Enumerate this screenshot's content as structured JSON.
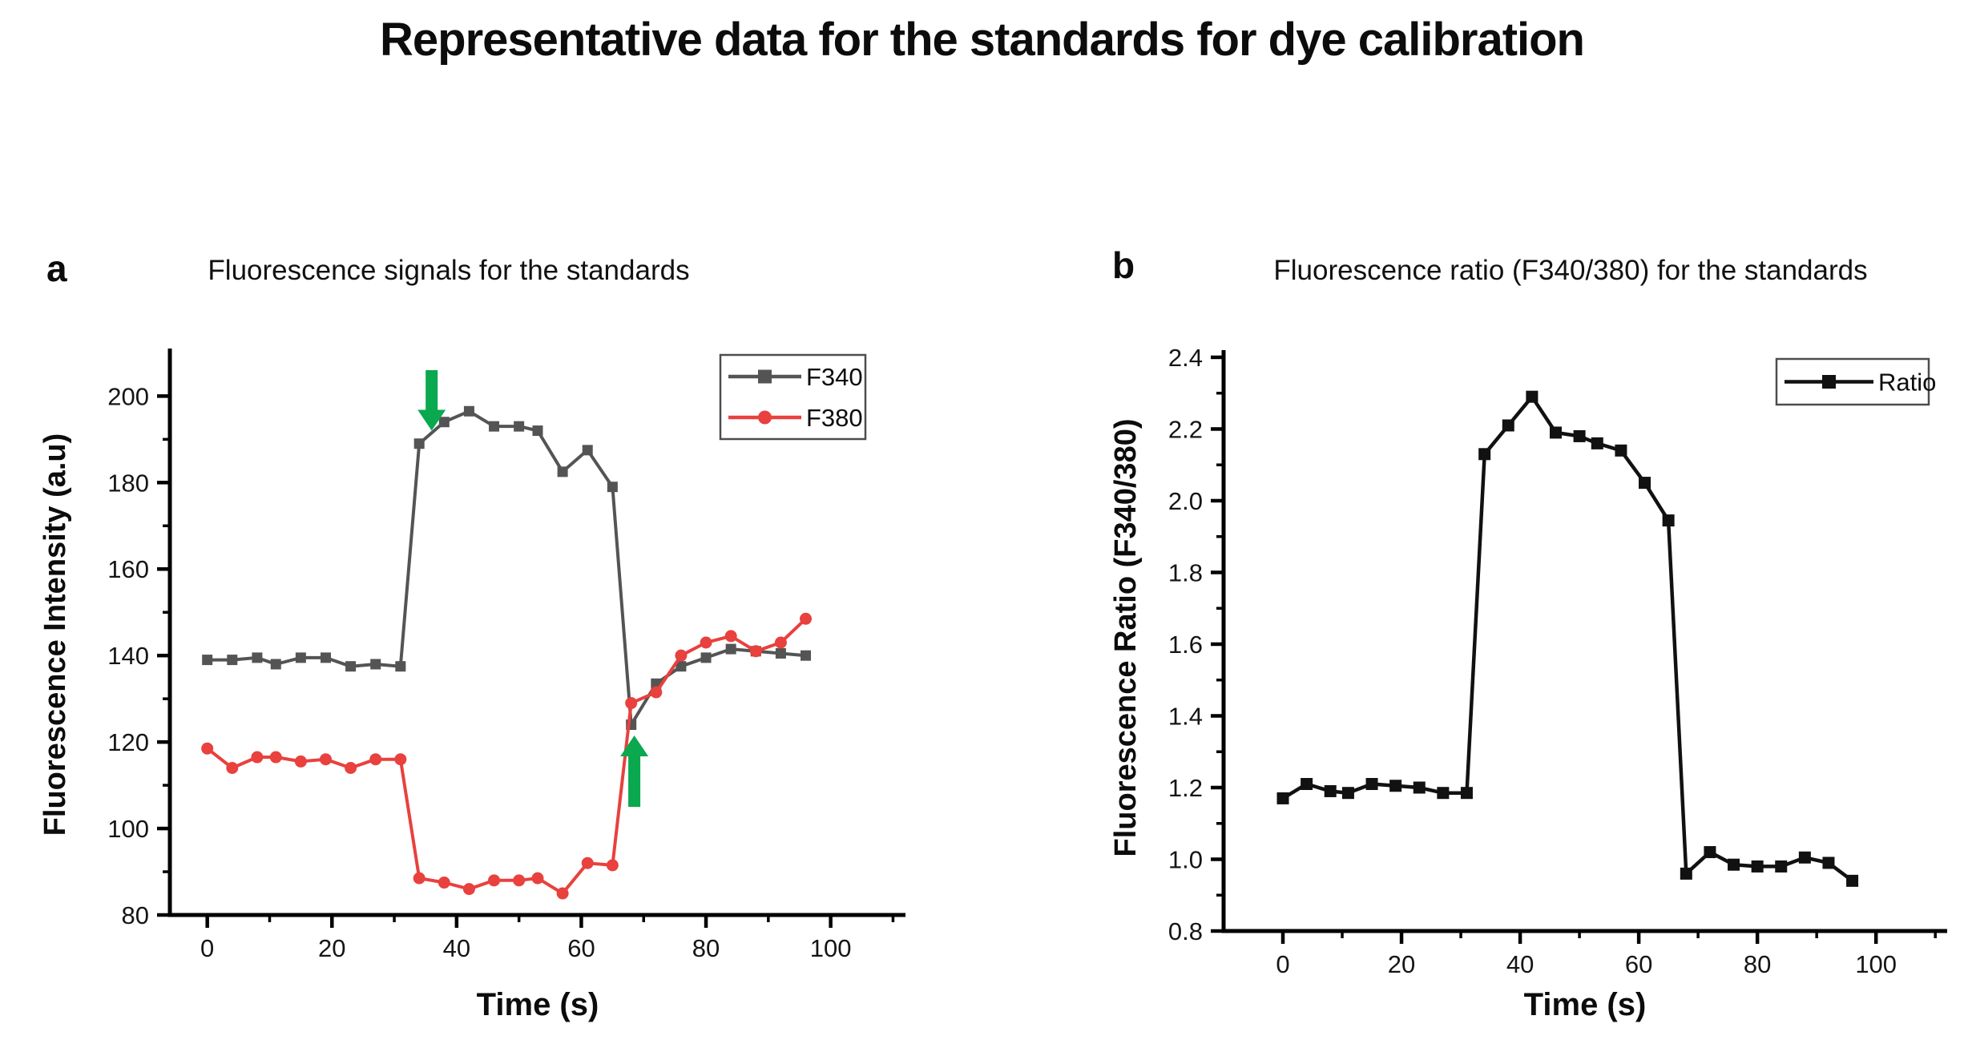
{
  "page": {
    "title": "Representative data for the standards for dye calibration",
    "background": "#ffffff"
  },
  "panels": [
    {
      "label": "a",
      "title": "Fluorescence signals for the standards"
    },
    {
      "label": "b",
      "title": "Fluorescence ratio (F340/380) for the standards"
    }
  ],
  "colors": {
    "f340": "#545454",
    "f380": "#e8413e",
    "ratio": "#111111",
    "annotation_arrow": "#0aa84f",
    "axis": "#000000",
    "legend_border": "#4d4d4d"
  },
  "chart_data": [
    {
      "type": "line",
      "title": "Fluorescence signals for the standards",
      "xlabel": "Time (s)",
      "ylabel": "Fluorescence Intensity (a.u)",
      "x": [
        0,
        4,
        8,
        11,
        15,
        19,
        23,
        27,
        31,
        34,
        38,
        42,
        46,
        50,
        53,
        57,
        61,
        65,
        68,
        72,
        76,
        80,
        84,
        88,
        92,
        96
      ],
      "series": [
        {
          "name": "F340",
          "color": "#545454",
          "marker": "square",
          "values": [
            139,
            139,
            139.5,
            138,
            139.5,
            139.5,
            137.5,
            138,
            137.5,
            189,
            194,
            196.5,
            193,
            193,
            192,
            182.5,
            187.5,
            179,
            124,
            133.5,
            137.5,
            139.5,
            141.5,
            141,
            140.5,
            140
          ]
        },
        {
          "name": "F380",
          "color": "#e8413e",
          "marker": "circle",
          "values": [
            118.5,
            114,
            116.5,
            116.5,
            115.5,
            116,
            114,
            116,
            116,
            88.5,
            87.5,
            86,
            88,
            88,
            88.5,
            85,
            92,
            91.5,
            129,
            131.5,
            140,
            143,
            144.5,
            141,
            143,
            148.5
          ]
        }
      ],
      "xlim": [
        -6,
        112
      ],
      "ylim": [
        80,
        211
      ],
      "x_major_ticks": [
        0,
        20,
        40,
        60,
        80,
        100
      ],
      "x_minor_ticks": [
        10,
        30,
        50,
        70,
        90,
        110
      ],
      "y_major_ticks": [
        80,
        100,
        120,
        140,
        160,
        180,
        200
      ],
      "y_minor_ticks": [
        90,
        110,
        130,
        150,
        170,
        190
      ],
      "y_tick_decimals": 0,
      "grid": false,
      "legend_position": "top-right",
      "annotations": [
        {
          "type": "arrow",
          "direction": "down",
          "color": "#0aa84f",
          "x": 36,
          "y_from": 206,
          "y_to": 192
        },
        {
          "type": "arrow",
          "direction": "up",
          "color": "#0aa84f",
          "x": 68.5,
          "y_from": 105,
          "y_to": 121.5
        }
      ]
    },
    {
      "type": "line",
      "title": "Fluorescence ratio (F340/380) for the standards",
      "xlabel": "Time (s)",
      "ylabel": "Fluorescence Ratio (F340/380)",
      "x": [
        0,
        4,
        8,
        11,
        15,
        19,
        23,
        27,
        31,
        34,
        38,
        42,
        46,
        50,
        53,
        57,
        61,
        65,
        68,
        72,
        76,
        80,
        84,
        88,
        92,
        96
      ],
      "series": [
        {
          "name": "Ratio",
          "color": "#111111",
          "marker": "square",
          "values": [
            1.17,
            1.21,
            1.19,
            1.185,
            1.21,
            1.205,
            1.2,
            1.185,
            1.185,
            2.13,
            2.21,
            2.29,
            2.19,
            2.18,
            2.16,
            2.14,
            2.05,
            1.945,
            0.96,
            1.02,
            0.985,
            0.98,
            0.98,
            1.005,
            0.99,
            0.94
          ]
        }
      ],
      "xlim": [
        -10,
        112
      ],
      "ylim": [
        0.8,
        2.42
      ],
      "x_major_ticks": [
        0,
        20,
        40,
        60,
        80,
        100
      ],
      "x_minor_ticks": [
        10,
        30,
        50,
        70,
        90,
        110
      ],
      "y_major_ticks": [
        0.8,
        1.0,
        1.2,
        1.4,
        1.6,
        1.8,
        2.0,
        2.2,
        2.4
      ],
      "y_minor_ticks": [
        0.9,
        1.1,
        1.3,
        1.5,
        1.7,
        1.9,
        2.1,
        2.3
      ],
      "y_tick_decimals": 1,
      "grid": false,
      "legend_position": "top-right",
      "annotations": []
    }
  ]
}
